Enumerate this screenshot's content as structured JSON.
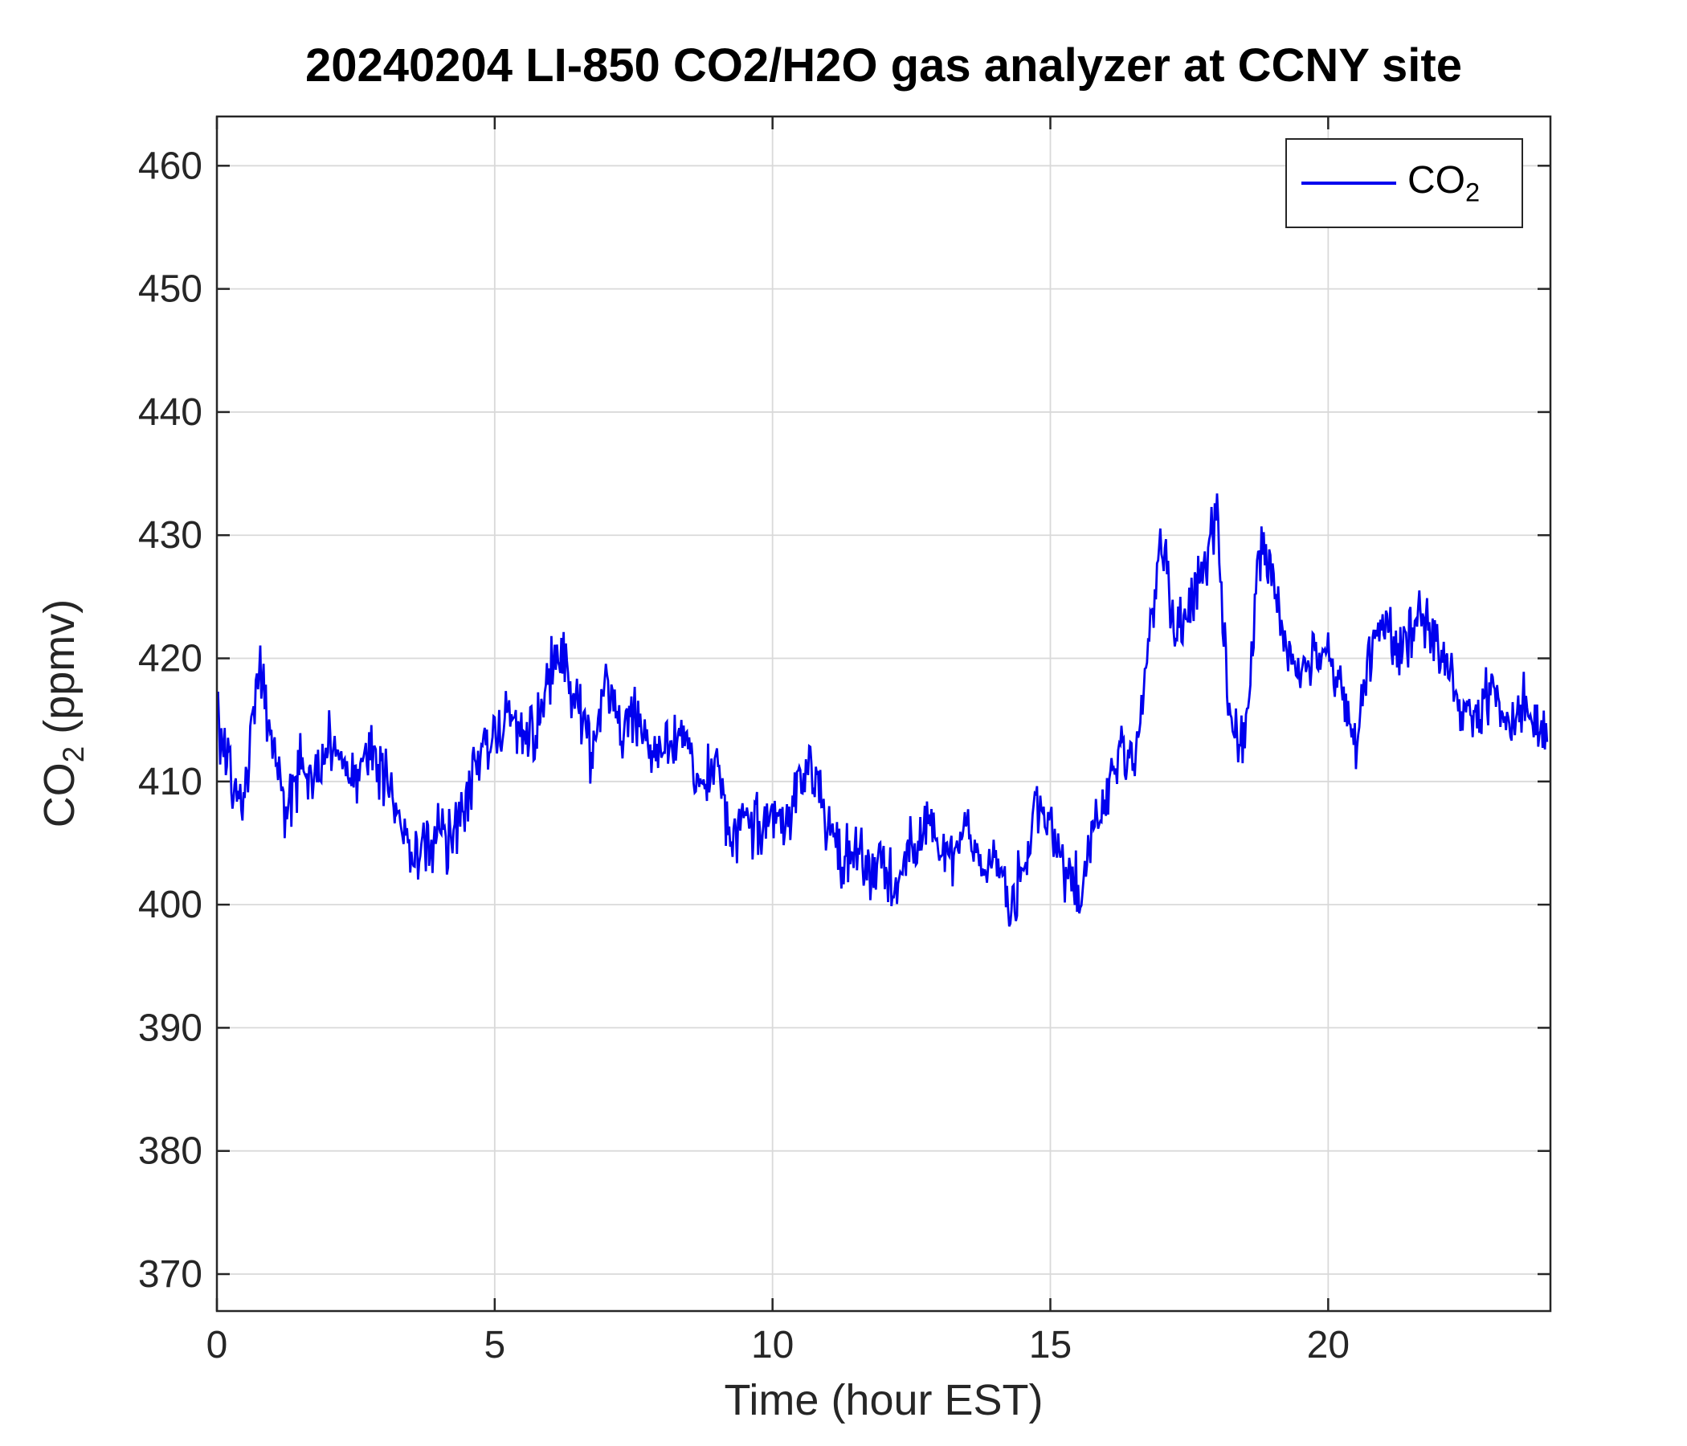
{
  "chart_data": {
    "type": "line",
    "title": "20240204 LI-850 CO2/H2O gas analyzer at CCNY site",
    "xlabel": "Time (hour EST)",
    "ylabel": {
      "main": "CO",
      "sub": "2",
      "rest": " (ppmv)"
    },
    "legend": {
      "position": "top-right",
      "entries": [
        {
          "label_main": "CO",
          "label_sub": "2",
          "color": "#0000EE"
        }
      ]
    },
    "xlim": [
      0,
      24
    ],
    "ylim": [
      367,
      464
    ],
    "xticks": [
      0,
      5,
      10,
      15,
      20
    ],
    "yticks": [
      370,
      380,
      390,
      400,
      410,
      420,
      430,
      440,
      450,
      460
    ],
    "grid": true,
    "line_color": "#0000EE",
    "axis_color": "#262626",
    "grid_color": "#d9d9d9",
    "series": [
      {
        "name": "CO2",
        "units": "ppmv",
        "anchor_start": 0,
        "anchor_step": 0.25,
        "anchor_values": [
          415,
          411,
          409,
          420,
          413,
          407,
          411,
          409,
          413,
          411,
          410,
          413,
          411,
          407,
          405,
          404,
          406,
          405,
          409,
          412,
          413,
          416,
          413,
          415,
          419,
          420,
          416,
          412,
          418,
          414,
          416,
          413,
          412,
          414,
          412,
          410,
          411,
          405,
          407,
          406,
          408,
          407,
          409,
          411,
          406,
          403,
          405,
          402,
          404,
          401,
          405,
          407,
          405,
          404,
          406,
          403,
          404,
          400,
          403,
          408,
          407,
          403,
          401,
          406,
          409,
          413,
          411,
          420,
          430,
          421,
          424,
          427,
          431,
          414,
          412,
          429,
          427,
          421,
          418,
          420,
          421,
          417,
          413,
          420,
          423,
          420,
          423,
          424,
          420,
          418,
          415,
          416,
          418,
          413,
          417,
          415,
          414
        ]
      }
    ],
    "noise": {
      "seed": 20240204,
      "amp": 3.2
    }
  }
}
